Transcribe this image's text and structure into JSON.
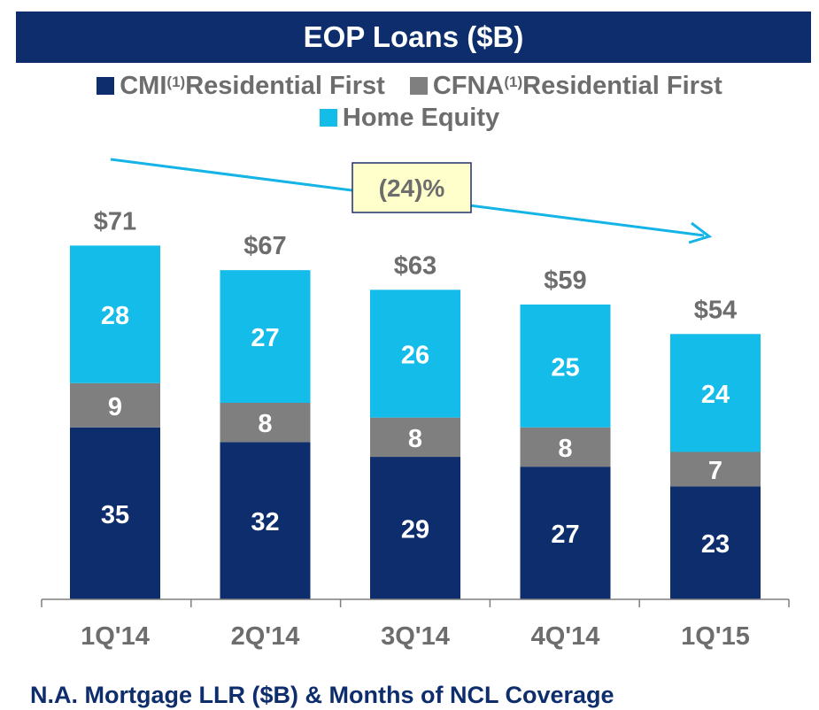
{
  "title": "EOP Loans ($B)",
  "legend": {
    "items": [
      {
        "label_main": "CMI",
        "label_sup": "(1)",
        "label_rest": " Residential First",
        "color": "#0d2d6c"
      },
      {
        "label_main": "CFNA",
        "label_sup": "(1)",
        "label_rest": " Residential First",
        "color": "#7f7f7f"
      },
      {
        "label_main": "Home Equity",
        "label_sup": "",
        "label_rest": "",
        "color": "#14bce9"
      }
    ]
  },
  "annotation": {
    "label": "(24)%",
    "box_color": "#ffffcc",
    "border_color": "#1f2f6b",
    "arrow_color": "#14b4e6"
  },
  "chart_data": {
    "type": "bar",
    "stacked": true,
    "categories": [
      "1Q'14",
      "2Q'14",
      "3Q'14",
      "4Q'14",
      "1Q'15"
    ],
    "series": [
      {
        "name": "CMI(1) Residential First",
        "values": [
          35,
          32,
          29,
          27,
          23
        ],
        "color": "#0d2d6c"
      },
      {
        "name": "CFNA(1) Residential First",
        "values": [
          9,
          8,
          8,
          8,
          7
        ],
        "color": "#7f7f7f"
      },
      {
        "name": "Home Equity",
        "values": [
          28,
          27,
          26,
          25,
          24
        ],
        "color": "#14bce9"
      }
    ],
    "totals": [
      "$71",
      "$67",
      "$63",
      "$59",
      "$54"
    ],
    "title": "EOP Loans ($B)",
    "ylim": [
      0,
      90
    ],
    "grid": false,
    "legend_position": "top"
  },
  "footer": {
    "text": "N.A. Mortgage LLR ($B) & Months of NCL Coverage"
  }
}
